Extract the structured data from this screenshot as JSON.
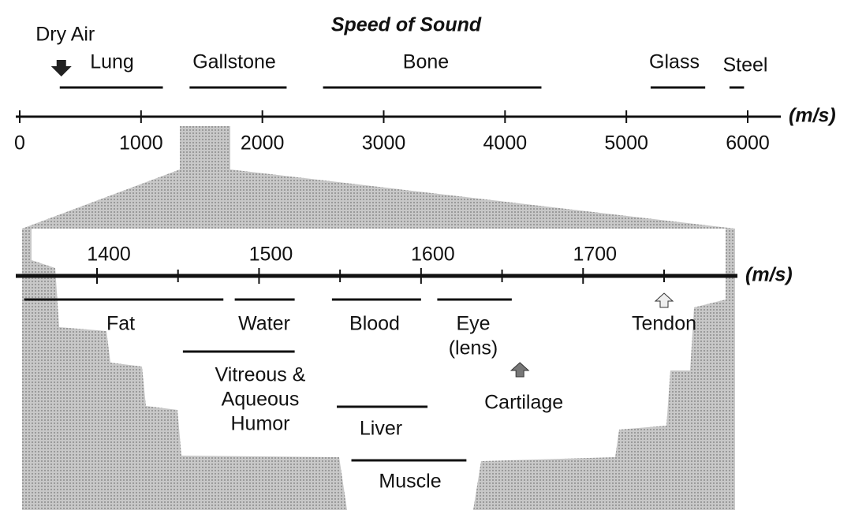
{
  "title": "Speed of Sound",
  "overview": {
    "unit": "(m/s)",
    "xlim": [
      0,
      6000
    ],
    "ticks": [
      0,
      1000,
      2000,
      3000,
      4000,
      5000,
      6000
    ],
    "materials": [
      {
        "label": "Lung",
        "range": [
          330,
          1180
        ]
      },
      {
        "label": "Gallstone",
        "range": [
          1400,
          2200
        ]
      },
      {
        "label": "Bone",
        "range": [
          2500,
          4300
        ]
      },
      {
        "label": "Glass",
        "range": [
          5200,
          5650
        ]
      },
      {
        "label": "Steel",
        "range": [
          5850,
          5970
        ]
      }
    ],
    "points": [
      {
        "label": "Dry Air",
        "value": 343
      }
    ]
  },
  "zoom": {
    "unit": "(m/s)",
    "xlim": [
      1400,
      1750
    ],
    "major_ticks": [
      1400,
      1500,
      1600,
      1700
    ],
    "minor_ticks": [
      1450,
      1550,
      1650,
      1750
    ],
    "materials": [
      {
        "label": [
          "Fat"
        ],
        "range": [
          1355,
          1478
        ]
      },
      {
        "label": [
          "Water"
        ],
        "range": [
          1485,
          1522
        ]
      },
      {
        "label": [
          "Blood"
        ],
        "range": [
          1545,
          1600
        ]
      },
      {
        "label": [
          "Eye",
          "(lens)"
        ],
        "range": [
          1610,
          1656
        ]
      },
      {
        "label": [
          "Vitreous &",
          "Aqueous",
          "Humor"
        ],
        "range": [
          1453,
          1522
        ]
      },
      {
        "label": [
          "Liver"
        ],
        "range": [
          1548,
          1604
        ]
      },
      {
        "label": [
          "Muscle"
        ],
        "range": [
          1557,
          1628
        ]
      }
    ],
    "points": [
      {
        "label": "Tendon",
        "value": 1750
      },
      {
        "label": "Cartilage",
        "value": 1661
      }
    ]
  }
}
